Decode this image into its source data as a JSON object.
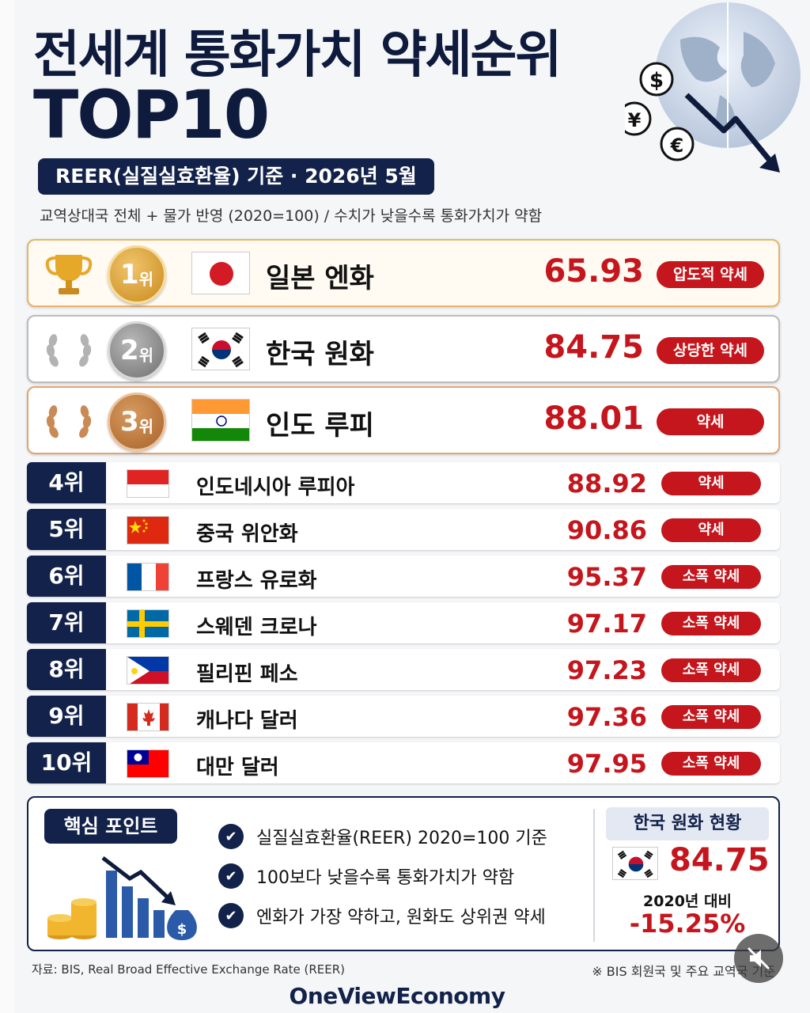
{
  "header": {
    "title_line1": "전세계 통화가치 약세순위",
    "title_line2": "TOP10",
    "basis": "REER(실질실효환율) 기준 · 2026년 5월",
    "subtitle": "교역상대국 전체 + 물가 반영 (2020=100) / 수치가 낮을수록 통화가치가 약함"
  },
  "top3": [
    {
      "rank_num": "1",
      "rank_suffix": "위",
      "country": "일본 엔화",
      "value": "65.93",
      "tag": "압도적 약세",
      "flag": "japan-flag-icon",
      "medal": "gold"
    },
    {
      "rank_num": "2",
      "rank_suffix": "위",
      "country": "한국 원화",
      "value": "84.75",
      "tag": "상당한 약세",
      "flag": "korea-flag-icon",
      "medal": "silver"
    },
    {
      "rank_num": "3",
      "rank_suffix": "위",
      "country": "인도 루피",
      "value": "88.01",
      "tag": "약세",
      "flag": "india-flag-icon",
      "medal": "bronze"
    }
  ],
  "rest": [
    {
      "rank": "4위",
      "country": "인도네시아 루피아",
      "value": "88.92",
      "tag": "약세",
      "flag": "indonesia-flag-icon"
    },
    {
      "rank": "5위",
      "country": "중국 위안화",
      "value": "90.86",
      "tag": "약세",
      "flag": "china-flag-icon"
    },
    {
      "rank": "6위",
      "country": "프랑스 유로화",
      "value": "95.37",
      "tag": "소폭 약세",
      "flag": "france-flag-icon"
    },
    {
      "rank": "7위",
      "country": "스웨덴 크로나",
      "value": "97.17",
      "tag": "소폭 약세",
      "flag": "sweden-flag-icon"
    },
    {
      "rank": "8위",
      "country": "필리핀 페소",
      "value": "97.23",
      "tag": "소폭 약세",
      "flag": "philippines-flag-icon"
    },
    {
      "rank": "9위",
      "country": "캐나다 달러",
      "value": "97.36",
      "tag": "소폭 약세",
      "flag": "canada-flag-icon"
    },
    {
      "rank": "10위",
      "country": "대만 달러",
      "value": "97.95",
      "tag": "소폭 약세",
      "flag": "taiwan-flag-icon"
    }
  ],
  "key_points": {
    "label": "핵심 포인트",
    "items": [
      "실질실효환율(REER) 2020=100 기준",
      "100보다 낮을수록 통화가치가 약함",
      "엔화가 가장 약하고, 원화도 상위권 약세"
    ]
  },
  "korea_status": {
    "title": "한국 원화 현황",
    "value": "84.75",
    "compare_label": "2020년 대비",
    "change": "-15.25%"
  },
  "footer": {
    "source": "자료: BIS, Real Broad Effective Exchange Rate (REER)",
    "note": "※ BIS 회원국 및 주요 교역국 기준",
    "brand": "OneViewEconomy"
  },
  "colors": {
    "navy": "#13224a",
    "red": "#c4161c",
    "gold": "#c98a1f",
    "silver": "#8a8a8a",
    "bronze": "#a8632a"
  },
  "icons": {
    "currency": [
      "dollar-icon",
      "yen-icon",
      "euro-icon"
    ],
    "trend": "down-arrow-icon",
    "mute": "mute-icon"
  }
}
